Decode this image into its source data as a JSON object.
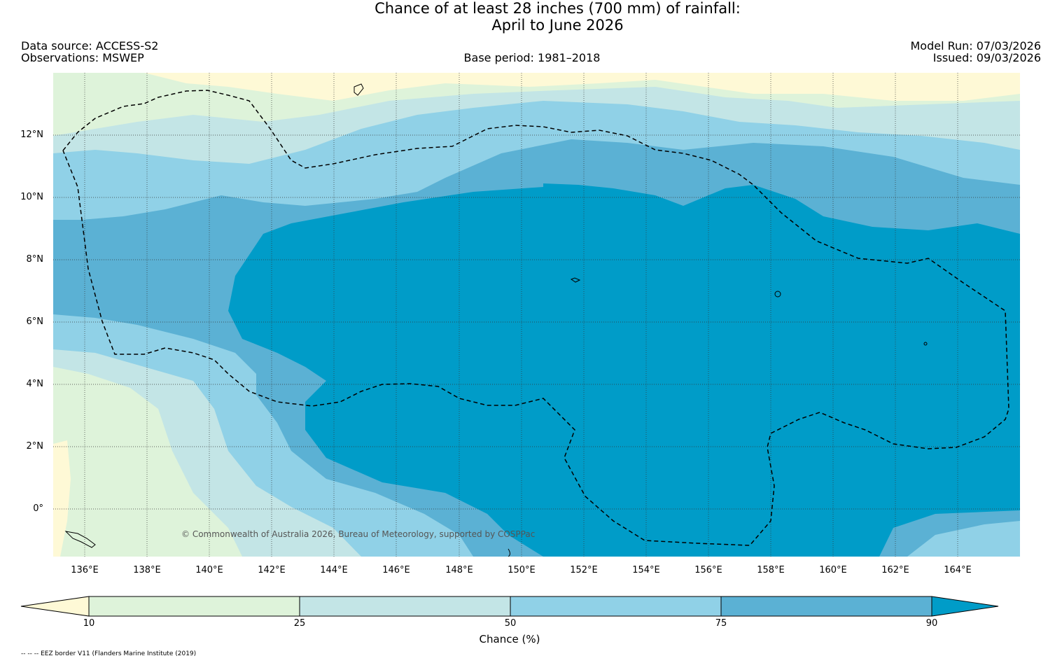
{
  "title": {
    "line1": "Chance of at least 28 inches (700  mm) of rainfall:",
    "line2": "April to June 2026"
  },
  "meta": {
    "data_source": "Data source: ACCESS-S2",
    "observations": "Observations: MSWEP",
    "base_period": "Base period: 1981–2018",
    "model_run": "Model Run: 07/03/2026",
    "issued": "Issued: 09/03/2026"
  },
  "map": {
    "lat_labels": [
      "12°N",
      "10°N",
      "8°N",
      "6°N",
      "4°N",
      "2°N",
      "0°"
    ],
    "lon_labels": [
      "136°E",
      "138°E",
      "140°E",
      "142°E",
      "144°E",
      "146°E",
      "148°E",
      "150°E",
      "152°E",
      "154°E",
      "156°E",
      "158°E",
      "160°E",
      "162°E",
      "164°E"
    ],
    "copyright": "© Commonwealth of Australia 2026, Bureau of Meteorology, supported by COSPPac"
  },
  "colorbar": {
    "ticks": [
      "10",
      "25",
      "50",
      "75",
      "90"
    ],
    "title": "Chance (%)",
    "colors": [
      "#fef9d6",
      "#def3da",
      "#c3e5e6",
      "#90d1e7",
      "#5bb1d4",
      "#009cc8"
    ]
  },
  "footnote": "-- -- -- EEZ border V11 (Flanders Marine Institute (2019)"
}
